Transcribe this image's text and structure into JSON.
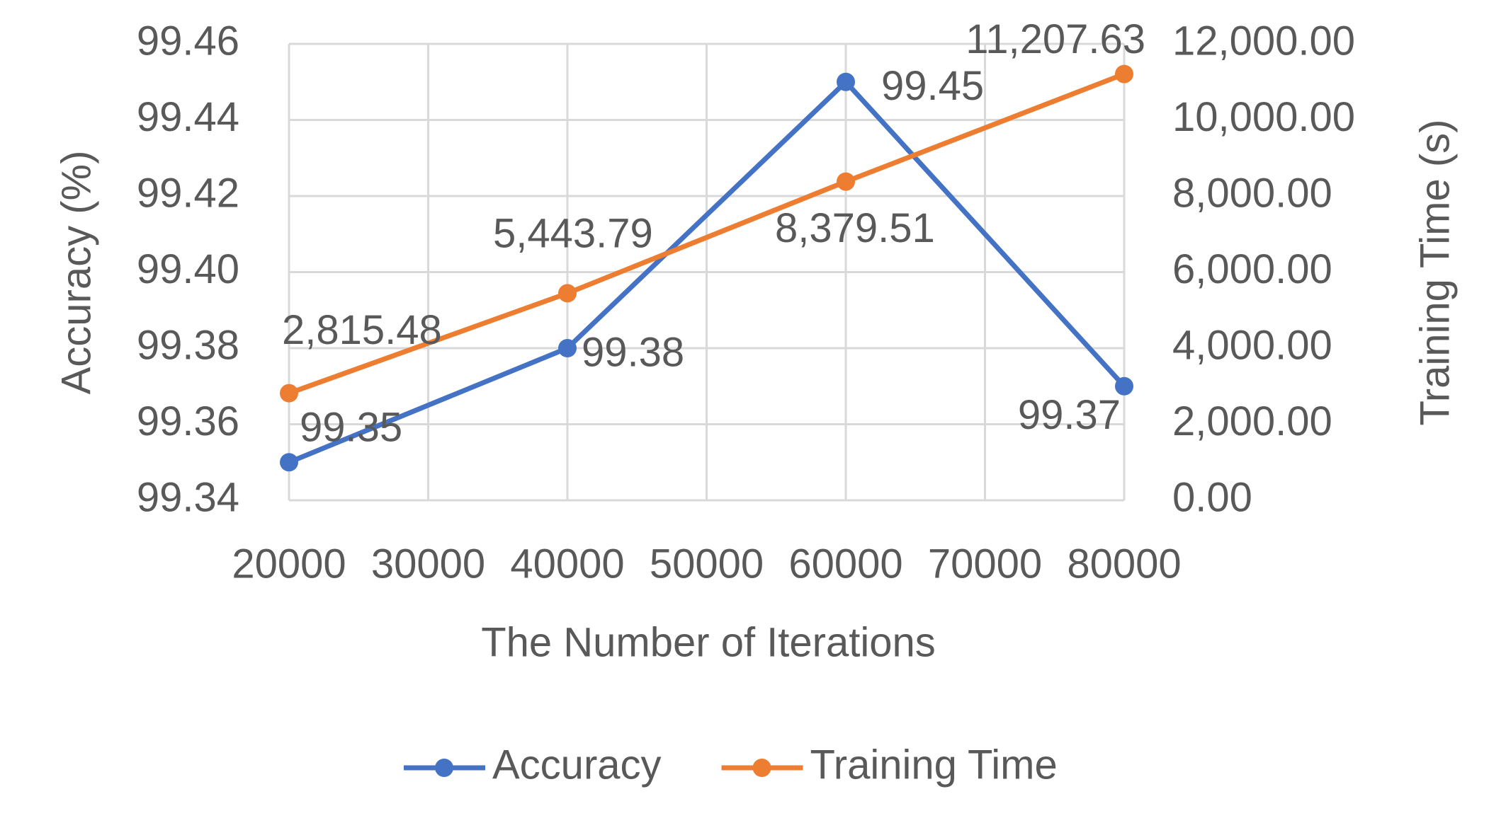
{
  "chart_data": {
    "type": "line",
    "x_label": "The Number of Iterations",
    "y_label": "Accuracy (%)",
    "y2_label": "Training Time (s)",
    "x": [
      20000,
      40000,
      60000,
      80000
    ],
    "xlim": [
      20000,
      80000
    ],
    "xticks": [
      20000,
      30000,
      40000,
      50000,
      60000,
      70000,
      80000
    ],
    "ylim": [
      99.34,
      99.46
    ],
    "yticks": [
      99.34,
      99.36,
      99.38,
      {
        "value": 99.4,
        "label": "99.40"
      },
      99.42,
      99.44,
      99.46
    ],
    "y2lim": [
      0,
      12000
    ],
    "y2ticks": [
      {
        "value": 0,
        "label": "0.00"
      },
      {
        "value": 2000,
        "label": "2,000.00"
      },
      {
        "value": 4000,
        "label": "4,000.00"
      },
      {
        "value": 6000,
        "label": "6,000.00"
      },
      {
        "value": 8000,
        "label": "8,000.00"
      },
      {
        "value": 10000,
        "label": "10,000.00"
      },
      {
        "value": 12000,
        "label": "12,000.00"
      }
    ],
    "grid": true,
    "legend": "bottom",
    "series": [
      {
        "name": "Accuracy",
        "color": "#4472c4",
        "values": [
          99.35,
          99.38,
          99.45,
          99.37
        ]
      },
      {
        "name": "Training Time",
        "color": "#ed7d31",
        "axis": "y2",
        "values": [
          2815.48,
          5443.79,
          8379.51,
          11207.63
        ],
        "value_labels": [
          "2,815.48",
          "5,443.79",
          "8,379.51",
          "11,207.63"
        ]
      }
    ]
  }
}
